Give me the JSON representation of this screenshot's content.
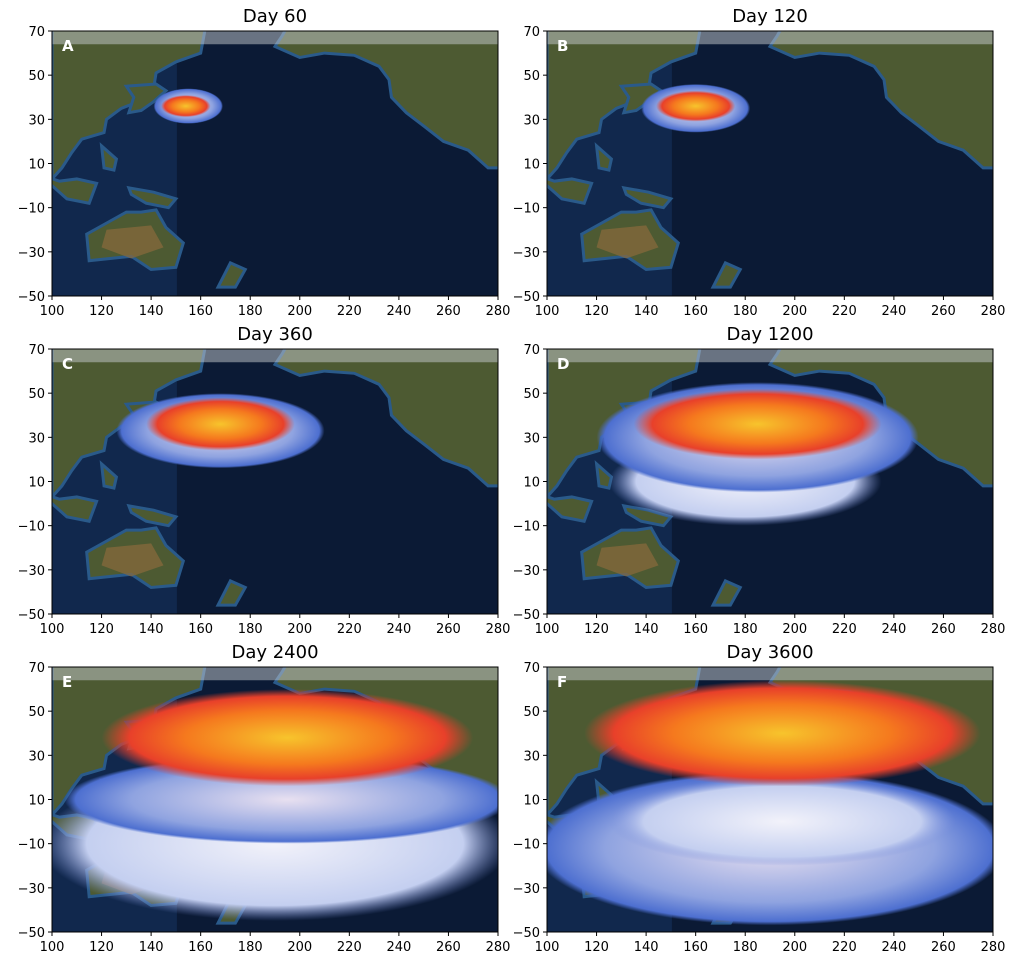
{
  "panels": [
    {
      "label": "A",
      "title": "Day 60"
    },
    {
      "label": "B",
      "title": "Day 120"
    },
    {
      "label": "C",
      "title": "Day 360"
    },
    {
      "label": "D",
      "title": "Day 1200"
    },
    {
      "label": "E",
      "title": "Day 2400"
    },
    {
      "label": "F",
      "title": "Day 3600"
    }
  ],
  "xlim": [
    100,
    280
  ],
  "ylim": [
    -50,
    70
  ],
  "xticks": [
    100,
    120,
    140,
    160,
    180,
    200,
    220,
    240,
    260,
    280
  ],
  "yticks": [
    70,
    50,
    30,
    10,
    {
      "value": -10,
      "label": "−10"
    },
    {
      "value": -30,
      "label": "−30"
    },
    {
      "value": -50,
      "label": "−50"
    }
  ]
}
